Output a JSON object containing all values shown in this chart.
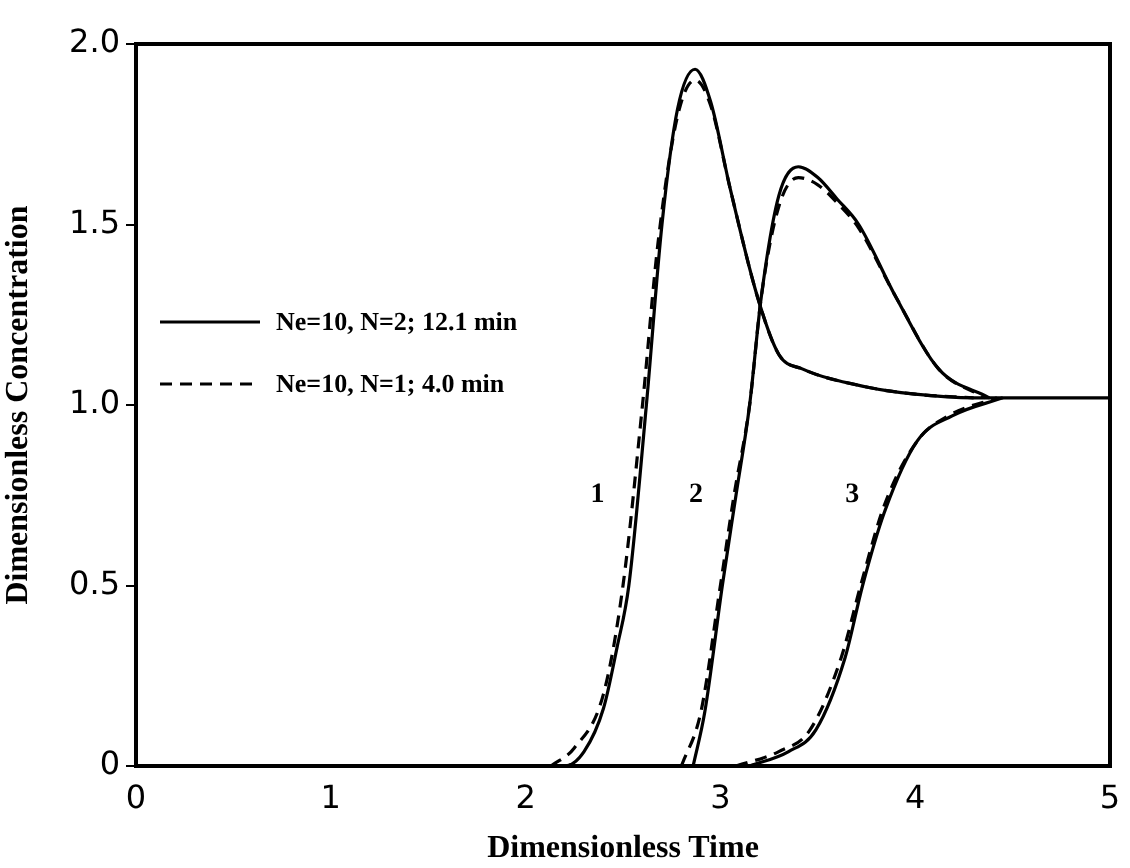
{
  "chart_data": {
    "type": "line",
    "xlabel": "Dimensionless Time",
    "ylabel": "Dimensionless Concentration",
    "xlim": [
      0,
      5
    ],
    "ylim": [
      0,
      2
    ],
    "xticks": [
      0,
      1,
      2,
      3,
      4,
      5
    ],
    "yticks": [
      0,
      {
        "value": 0.5,
        "label": "0.5"
      },
      {
        "value": 1,
        "label": "1.0"
      },
      {
        "value": 1.5,
        "label": "1.5"
      },
      {
        "value": 2,
        "label": "2.0"
      }
    ],
    "grid": false,
    "legend": "left",
    "marker": "none",
    "series": [
      {
        "name": "Ne=10, N=2; 12.1 min",
        "color": "#000000",
        "line_style": "solid",
        "x": [
          0,
          2.2,
          2.3,
          2.4,
          2.47,
          2.53,
          2.62,
          2.7,
          2.78,
          2.87,
          2.95,
          3.05,
          3.19,
          3.3,
          3.42,
          3.75,
          4.0,
          4.3,
          5
        ],
        "values": [
          0,
          0,
          0.04,
          0.16,
          0.33,
          0.5,
          1.0,
          1.5,
          1.82,
          1.93,
          1.84,
          1.6,
          1.3,
          1.14,
          1.1,
          1.05,
          1.03,
          1.02,
          1.02
        ]
      },
      {
        "name": "Ne=10, N=1; 4.0 min",
        "color": "#000000",
        "line_style": "dashed",
        "x": [
          2.13,
          2.25,
          2.4,
          2.5,
          2.6,
          2.68,
          2.78,
          2.87,
          2.95,
          3.05,
          3.19,
          3.3,
          3.42,
          3.75,
          4.0,
          4.3
        ],
        "values": [
          0,
          0.05,
          0.2,
          0.5,
          1.0,
          1.45,
          1.8,
          1.9,
          1.83,
          1.6,
          1.3,
          1.14,
          1.1,
          1.05,
          1.03,
          1.02
        ]
      },
      {
        "color": "#000000",
        "line_style": "solid",
        "x": [
          2.86,
          2.92,
          3.01,
          3.08,
          3.15,
          3.21,
          3.3,
          3.4,
          3.5,
          3.6,
          3.71,
          3.9,
          4.12,
          4.38
        ],
        "values": [
          0,
          0.15,
          0.5,
          0.75,
          1.0,
          1.3,
          1.58,
          1.66,
          1.63,
          1.57,
          1.5,
          1.3,
          1.1,
          1.02
        ]
      },
      {
        "color": "#000000",
        "line_style": "dashed",
        "x": [
          2.8,
          2.9,
          3.0,
          3.07,
          3.15,
          3.21,
          3.3,
          3.4,
          3.5,
          3.6,
          3.71,
          3.9,
          4.12,
          4.36
        ],
        "values": [
          0,
          0.15,
          0.5,
          0.75,
          1.0,
          1.3,
          1.55,
          1.63,
          1.61,
          1.56,
          1.49,
          1.3,
          1.1,
          1.02
        ]
      },
      {
        "color": "#000000",
        "line_style": "solid",
        "x": [
          3.15,
          3.35,
          3.49,
          3.64,
          3.73,
          3.84,
          4.01,
          4.19,
          4.45
        ],
        "values": [
          0,
          0.04,
          0.1,
          0.3,
          0.5,
          0.7,
          0.9,
          0.97,
          1.02
        ]
      },
      {
        "color": "#000000",
        "line_style": "dashed",
        "x": [
          3.08,
          3.3,
          3.46,
          3.62,
          3.72,
          3.84,
          4.01,
          4.17,
          4.42
        ],
        "values": [
          0,
          0.04,
          0.1,
          0.3,
          0.5,
          0.72,
          0.9,
          0.97,
          1.02
        ]
      }
    ],
    "annotations": [
      "1",
      "2",
      "3"
    ]
  }
}
